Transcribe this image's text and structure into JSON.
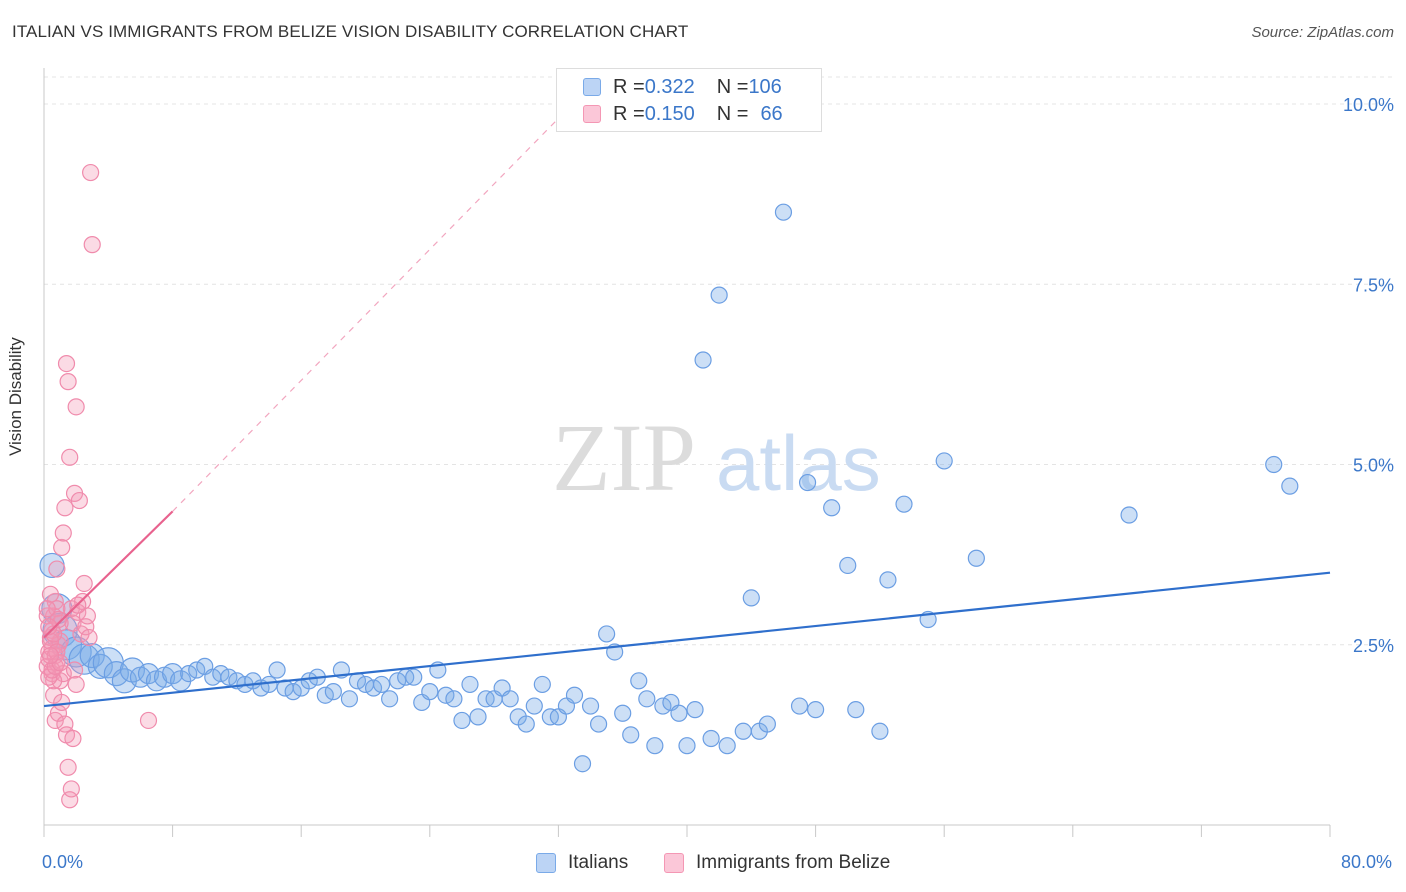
{
  "title": "ITALIAN VS IMMIGRANTS FROM BELIZE VISION DISABILITY CORRELATION CHART",
  "source": "Source: ZipAtlas.com",
  "watermark": {
    "zip": "ZIP",
    "atlas": "atlas"
  },
  "legend_top": {
    "rows": [
      {
        "r_label": "R = ",
        "r_value": "0.322",
        "n_label": "N = ",
        "n_value": "106",
        "color": "#7aaae8"
      },
      {
        "r_label": "R = ",
        "r_value": "0.150",
        "n_label": "N = ",
        "n_value": "66",
        "color": "#f497b4"
      }
    ]
  },
  "legend_bottom": {
    "items": [
      "Italians",
      "Immigrants from Belize"
    ]
  },
  "chart_data": {
    "type": "scatter",
    "title": "ITALIAN VS IMMIGRANTS FROM BELIZE VISION DISABILITY CORRELATION CHART",
    "xlabel": "",
    "ylabel": "Vision Disability",
    "xlim": [
      0,
      80
    ],
    "ylim": [
      0,
      10.5
    ],
    "x_tick_labels": [
      "0.0%",
      "80.0%"
    ],
    "y_ticks": [
      2.5,
      5.0,
      7.5,
      10.0
    ],
    "y_tick_labels": [
      "2.5%",
      "5.0%",
      "7.5%",
      "10.0%"
    ],
    "grid": true,
    "legend_position": "top-center",
    "colors": {
      "italians": "#7aaae8",
      "belize": "#f497b4",
      "italians_line": "#2f6fcc",
      "belize_line": "#e8628e"
    },
    "series": [
      {
        "name": "Italians",
        "r": 0.322,
        "n": 106,
        "trend": {
          "x": [
            0,
            80
          ],
          "y": [
            1.65,
            3.5
          ]
        },
        "points": [
          [
            0.5,
            3.6,
            3
          ],
          [
            0.8,
            3.0,
            4
          ],
          [
            1.0,
            2.7,
            5
          ],
          [
            1.4,
            2.5,
            4
          ],
          [
            2.0,
            2.4,
            4
          ],
          [
            2.5,
            2.3,
            4
          ],
          [
            3.0,
            2.35,
            3
          ],
          [
            3.5,
            2.2,
            3
          ],
          [
            4.0,
            2.25,
            4
          ],
          [
            4.5,
            2.1,
            3
          ],
          [
            5.0,
            2.0,
            3
          ],
          [
            5.5,
            2.15,
            3
          ],
          [
            6.0,
            2.05,
            2
          ],
          [
            6.5,
            2.1,
            2
          ],
          [
            7.0,
            2.0,
            2
          ],
          [
            7.5,
            2.05,
            2
          ],
          [
            8.0,
            2.1,
            2
          ],
          [
            8.5,
            2.0,
            2
          ],
          [
            9.0,
            2.1,
            1
          ],
          [
            9.5,
            2.15,
            1
          ],
          [
            10.0,
            2.2,
            1
          ],
          [
            10.5,
            2.05,
            1
          ],
          [
            11.0,
            2.1,
            1
          ],
          [
            11.5,
            2.05,
            1
          ],
          [
            12.0,
            2.0,
            1
          ],
          [
            12.5,
            1.95,
            1
          ],
          [
            13.0,
            2.0,
            1
          ],
          [
            13.5,
            1.9,
            1
          ],
          [
            14.0,
            1.95,
            1
          ],
          [
            14.5,
            2.15,
            1
          ],
          [
            15.0,
            1.9,
            1
          ],
          [
            15.5,
            1.85,
            1
          ],
          [
            16.0,
            1.9,
            1
          ],
          [
            16.5,
            2.0,
            1
          ],
          [
            17.0,
            2.05,
            1
          ],
          [
            17.5,
            1.8,
            1
          ],
          [
            18.0,
            1.85,
            1
          ],
          [
            18.5,
            2.15,
            1
          ],
          [
            19.0,
            1.75,
            1
          ],
          [
            19.5,
            2.0,
            1
          ],
          [
            20.0,
            1.95,
            1
          ],
          [
            20.5,
            1.9,
            1
          ],
          [
            21.0,
            1.95,
            1
          ],
          [
            21.5,
            1.75,
            1
          ],
          [
            22.0,
            2.0,
            1
          ],
          [
            22.5,
            2.05,
            1
          ],
          [
            23.0,
            2.05,
            1
          ],
          [
            23.5,
            1.7,
            1
          ],
          [
            24.0,
            1.85,
            1
          ],
          [
            24.5,
            2.15,
            1
          ],
          [
            25.0,
            1.8,
            1
          ],
          [
            25.5,
            1.75,
            1
          ],
          [
            26.0,
            1.45,
            1
          ],
          [
            26.5,
            1.95,
            1
          ],
          [
            27.0,
            1.5,
            1
          ],
          [
            27.5,
            1.75,
            1
          ],
          [
            28.0,
            1.75,
            1
          ],
          [
            28.5,
            1.9,
            1
          ],
          [
            29.0,
            1.75,
            1
          ],
          [
            29.5,
            1.5,
            1
          ],
          [
            30.0,
            1.4,
            1
          ],
          [
            30.5,
            1.65,
            1
          ],
          [
            31.0,
            1.95,
            1
          ],
          [
            31.5,
            1.5,
            1
          ],
          [
            32.0,
            1.5,
            1
          ],
          [
            32.5,
            1.65,
            1
          ],
          [
            33.0,
            1.8,
            1
          ],
          [
            33.5,
            0.85,
            1
          ],
          [
            34.0,
            1.65,
            1
          ],
          [
            34.5,
            1.4,
            1
          ],
          [
            35.0,
            2.65,
            1
          ],
          [
            35.5,
            2.4,
            1
          ],
          [
            36.0,
            1.55,
            1
          ],
          [
            36.5,
            1.25,
            1
          ],
          [
            37.0,
            2.0,
            1
          ],
          [
            37.5,
            1.75,
            1
          ],
          [
            38.0,
            1.1,
            1
          ],
          [
            38.5,
            1.65,
            1
          ],
          [
            39.0,
            1.7,
            1
          ],
          [
            39.5,
            1.55,
            1
          ],
          [
            40.0,
            1.1,
            1
          ],
          [
            40.5,
            1.6,
            1
          ],
          [
            41.0,
            6.45,
            1
          ],
          [
            41.5,
            1.2,
            1
          ],
          [
            42.0,
            7.35,
            1
          ],
          [
            42.5,
            1.1,
            1
          ],
          [
            43.5,
            1.3,
            1
          ],
          [
            44.0,
            3.15,
            1
          ],
          [
            44.5,
            1.3,
            1
          ],
          [
            45.0,
            1.4,
            1
          ],
          [
            46.0,
            8.5,
            1
          ],
          [
            47.0,
            1.65,
            1
          ],
          [
            47.5,
            4.75,
            1
          ],
          [
            48.0,
            1.6,
            1
          ],
          [
            49.0,
            4.4,
            1
          ],
          [
            50.0,
            3.6,
            1
          ],
          [
            50.5,
            1.6,
            1
          ],
          [
            52.0,
            1.3,
            1
          ],
          [
            52.5,
            3.4,
            1
          ],
          [
            53.5,
            4.45,
            1
          ],
          [
            55.0,
            2.85,
            1
          ],
          [
            56.0,
            5.05,
            1
          ],
          [
            58.0,
            3.7,
            1
          ],
          [
            67.5,
            4.3,
            1
          ],
          [
            76.5,
            5.0,
            1
          ],
          [
            77.5,
            4.7,
            1
          ]
        ]
      },
      {
        "name": "Immigrants from Belize",
        "r": 0.15,
        "n": 66,
        "trend": {
          "x": [
            0,
            8
          ],
          "y": [
            2.6,
            4.35
          ]
        },
        "trend_extension": {
          "x": [
            8,
            32
          ],
          "y": [
            4.35,
            9.8
          ]
        },
        "points": [
          [
            0.2,
            2.2
          ],
          [
            0.3,
            2.4
          ],
          [
            0.4,
            2.6
          ],
          [
            0.5,
            2.1
          ],
          [
            0.6,
            2.9
          ],
          [
            0.7,
            3.1
          ],
          [
            0.8,
            3.55
          ],
          [
            0.9,
            2.5
          ],
          [
            1.0,
            2.0
          ],
          [
            1.1,
            3.85
          ],
          [
            1.2,
            4.05
          ],
          [
            1.3,
            4.4
          ],
          [
            1.4,
            6.4
          ],
          [
            1.5,
            6.15
          ],
          [
            1.6,
            5.1
          ],
          [
            1.7,
            3.0
          ],
          [
            1.8,
            2.8
          ],
          [
            1.9,
            4.6
          ],
          [
            2.0,
            5.8
          ],
          [
            2.1,
            2.95
          ],
          [
            2.2,
            4.5
          ],
          [
            2.3,
            2.65
          ],
          [
            2.4,
            3.1
          ],
          [
            2.5,
            3.35
          ],
          [
            2.6,
            2.75
          ],
          [
            2.7,
            2.9
          ],
          [
            2.8,
            2.6
          ],
          [
            2.9,
            9.05
          ],
          [
            3.0,
            8.05
          ],
          [
            0.2,
            2.9
          ],
          [
            0.3,
            2.3
          ],
          [
            0.5,
            2.45
          ],
          [
            0.6,
            1.8
          ],
          [
            0.7,
            1.45
          ],
          [
            0.8,
            2.25
          ],
          [
            0.9,
            1.55
          ],
          [
            1.0,
            2.55
          ],
          [
            1.1,
            1.7
          ],
          [
            1.2,
            2.1
          ],
          [
            1.3,
            1.4
          ],
          [
            1.4,
            1.25
          ],
          [
            1.5,
            0.8
          ],
          [
            1.6,
            0.35
          ],
          [
            1.7,
            0.5
          ],
          [
            1.8,
            1.2
          ],
          [
            1.9,
            2.15
          ],
          [
            2.0,
            1.95
          ],
          [
            2.1,
            3.05
          ],
          [
            0.4,
            3.2
          ],
          [
            0.5,
            2.7
          ],
          [
            0.6,
            2.0
          ],
          [
            0.7,
            2.35
          ],
          [
            0.8,
            3.0
          ],
          [
            1.0,
            2.8
          ],
          [
            0.3,
            2.05
          ],
          [
            0.4,
            2.55
          ],
          [
            0.5,
            2.15
          ],
          [
            0.6,
            2.65
          ],
          [
            0.7,
            2.2
          ],
          [
            0.8,
            2.4
          ],
          [
            0.9,
            2.85
          ],
          [
            1.0,
            2.25
          ],
          [
            6.5,
            1.45
          ],
          [
            0.2,
            3.0
          ],
          [
            0.3,
            2.75
          ],
          [
            0.4,
            2.35
          ]
        ]
      }
    ]
  }
}
